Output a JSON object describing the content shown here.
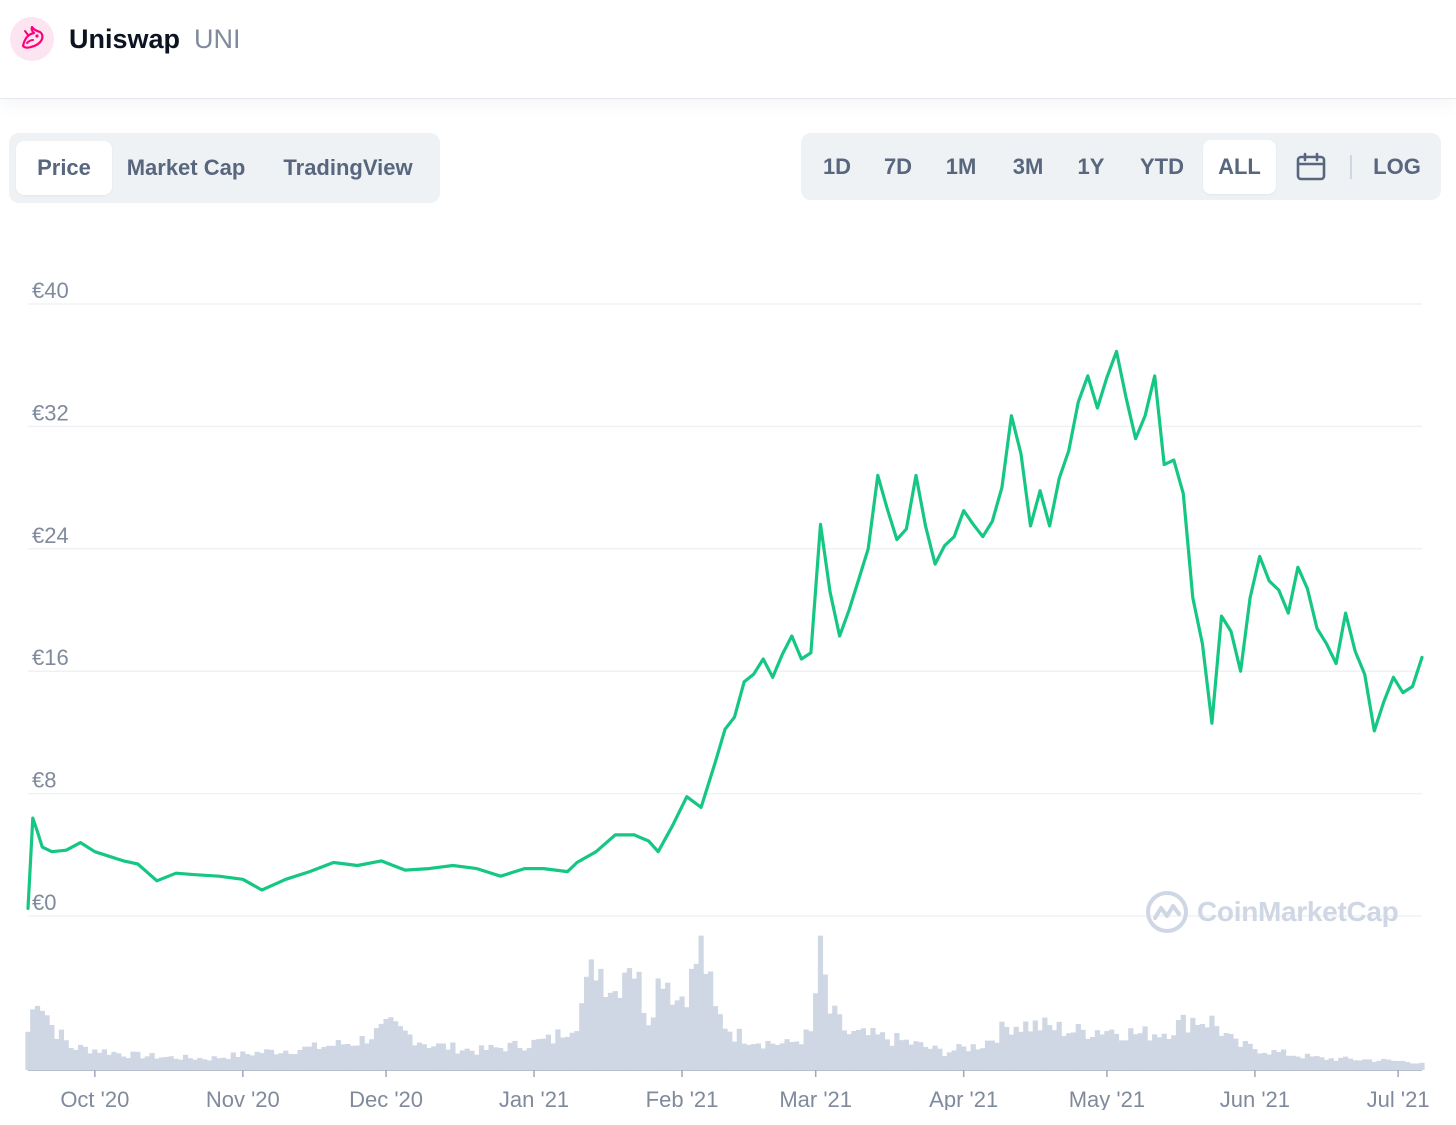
{
  "header": {
    "name": "Uniswap",
    "symbol": "UNI"
  },
  "view_tabs": [
    {
      "label": "Price",
      "active": true
    },
    {
      "label": "Market Cap",
      "active": false
    },
    {
      "label": "TradingView",
      "active": false
    }
  ],
  "range_tabs": [
    {
      "label": "1D",
      "active": false
    },
    {
      "label": "7D",
      "active": false
    },
    {
      "label": "1M",
      "active": false
    },
    {
      "label": "3M",
      "active": false
    },
    {
      "label": "1Y",
      "active": false
    },
    {
      "label": "YTD",
      "active": false
    },
    {
      "label": "ALL",
      "active": true
    }
  ],
  "scale_toggle": "LOG",
  "watermark": "CoinMarketCap",
  "colors": {
    "price_line": "#16c784",
    "volume_fill": "#cfd6e4",
    "logo_accent": "#ff007a"
  },
  "chart_data": {
    "type": "line",
    "title": "",
    "xlabel": "",
    "ylabel": "",
    "ylim": [
      0,
      40
    ],
    "y_ticks": [
      "€0",
      "€8",
      "€16",
      "€24",
      "€32",
      "€40"
    ],
    "x_ticks": [
      {
        "label": "Oct '20",
        "date": "2020-10-01"
      },
      {
        "label": "Nov '20",
        "date": "2020-11-01"
      },
      {
        "label": "Dec '20",
        "date": "2020-12-01"
      },
      {
        "label": "Jan '21",
        "date": "2021-01-01"
      },
      {
        "label": "Feb '21",
        "date": "2021-02-01"
      },
      {
        "label": "Mar '21",
        "date": "2021-03-01"
      },
      {
        "label": "Apr '21",
        "date": "2021-04-01"
      },
      {
        "label": "May '21",
        "date": "2021-05-01"
      },
      {
        "label": "Jun '21",
        "date": "2021-06-01"
      },
      {
        "label": "Jul '21",
        "date": "2021-07-01"
      }
    ],
    "grid": true,
    "series": [
      {
        "values": [
          [
            "2020-09-17",
            0.5
          ],
          [
            "2020-09-18",
            6.4
          ],
          [
            "2020-09-19",
            5.5
          ],
          [
            "2020-09-20",
            4.5
          ],
          [
            "2020-09-22",
            4.2
          ],
          [
            "2020-09-25",
            4.3
          ],
          [
            "2020-09-28",
            4.8
          ],
          [
            "2020-10-01",
            4.2
          ],
          [
            "2020-10-04",
            3.9
          ],
          [
            "2020-10-07",
            3.6
          ],
          [
            "2020-10-10",
            3.4
          ],
          [
            "2020-10-14",
            2.3
          ],
          [
            "2020-10-18",
            2.8
          ],
          [
            "2020-10-22",
            2.7
          ],
          [
            "2020-10-27",
            2.6
          ],
          [
            "2020-11-01",
            2.4
          ],
          [
            "2020-11-05",
            1.7
          ],
          [
            "2020-11-10",
            2.4
          ],
          [
            "2020-11-15",
            2.9
          ],
          [
            "2020-11-20",
            3.5
          ],
          [
            "2020-11-25",
            3.3
          ],
          [
            "2020-11-30",
            3.6
          ],
          [
            "2020-12-05",
            3.0
          ],
          [
            "2020-12-10",
            3.1
          ],
          [
            "2020-12-15",
            3.3
          ],
          [
            "2020-12-20",
            3.1
          ],
          [
            "2020-12-25",
            2.6
          ],
          [
            "2020-12-30",
            3.1
          ],
          [
            "2021-01-03",
            3.1
          ],
          [
            "2021-01-08",
            2.9
          ],
          [
            "2021-01-10",
            3.5
          ],
          [
            "2021-01-14",
            4.2
          ],
          [
            "2021-01-18",
            5.3
          ],
          [
            "2021-01-22",
            5.3
          ],
          [
            "2021-01-25",
            4.9
          ],
          [
            "2021-01-27",
            4.2
          ],
          [
            "2021-01-30",
            5.9
          ],
          [
            "2021-02-02",
            7.8
          ],
          [
            "2021-02-05",
            7.1
          ],
          [
            "2021-02-08",
            10.1
          ],
          [
            "2021-02-10",
            12.2
          ],
          [
            "2021-02-12",
            13.0
          ],
          [
            "2021-02-14",
            15.3
          ],
          [
            "2021-02-16",
            15.8
          ],
          [
            "2021-02-18",
            16.8
          ],
          [
            "2021-02-20",
            15.6
          ],
          [
            "2021-02-22",
            17.1
          ],
          [
            "2021-02-24",
            18.3
          ],
          [
            "2021-02-26",
            16.8
          ],
          [
            "2021-02-28",
            17.2
          ],
          [
            "2021-03-02",
            25.6
          ],
          [
            "2021-03-04",
            21.2
          ],
          [
            "2021-03-06",
            18.3
          ],
          [
            "2021-03-08",
            20.0
          ],
          [
            "2021-03-10",
            22.0
          ],
          [
            "2021-03-12",
            24.0
          ],
          [
            "2021-03-14",
            28.8
          ],
          [
            "2021-03-16",
            26.6
          ],
          [
            "2021-03-18",
            24.6
          ],
          [
            "2021-03-20",
            25.3
          ],
          [
            "2021-03-22",
            28.8
          ],
          [
            "2021-03-24",
            25.5
          ],
          [
            "2021-03-26",
            23.0
          ],
          [
            "2021-03-28",
            24.2
          ],
          [
            "2021-03-30",
            24.8
          ],
          [
            "2021-04-01",
            26.5
          ],
          [
            "2021-04-03",
            25.6
          ],
          [
            "2021-04-05",
            24.8
          ],
          [
            "2021-04-07",
            25.8
          ],
          [
            "2021-04-09",
            28.0
          ],
          [
            "2021-04-11",
            32.7
          ],
          [
            "2021-04-13",
            30.2
          ],
          [
            "2021-04-15",
            25.5
          ],
          [
            "2021-04-17",
            27.8
          ],
          [
            "2021-04-19",
            25.5
          ],
          [
            "2021-04-21",
            28.6
          ],
          [
            "2021-04-23",
            30.4
          ],
          [
            "2021-04-25",
            33.6
          ],
          [
            "2021-04-27",
            35.3
          ],
          [
            "2021-04-29",
            33.2
          ],
          [
            "2021-05-01",
            35.2
          ],
          [
            "2021-05-03",
            36.9
          ],
          [
            "2021-05-05",
            33.9
          ],
          [
            "2021-05-07",
            31.2
          ],
          [
            "2021-05-09",
            32.7
          ],
          [
            "2021-05-11",
            35.3
          ],
          [
            "2021-05-13",
            29.5
          ],
          [
            "2021-05-15",
            29.8
          ],
          [
            "2021-05-17",
            27.6
          ],
          [
            "2021-05-19",
            20.8
          ],
          [
            "2021-05-21",
            17.8
          ],
          [
            "2021-05-23",
            12.6
          ],
          [
            "2021-05-25",
            19.6
          ],
          [
            "2021-05-27",
            18.6
          ],
          [
            "2021-05-29",
            16.0
          ],
          [
            "2021-05-31",
            20.8
          ],
          [
            "2021-06-02",
            23.5
          ],
          [
            "2021-06-04",
            21.9
          ],
          [
            "2021-06-06",
            21.3
          ],
          [
            "2021-06-08",
            19.8
          ],
          [
            "2021-06-10",
            22.8
          ],
          [
            "2021-06-12",
            21.4
          ],
          [
            "2021-06-14",
            18.8
          ],
          [
            "2021-06-16",
            17.8
          ],
          [
            "2021-06-18",
            16.5
          ],
          [
            "2021-06-20",
            19.8
          ],
          [
            "2021-06-22",
            17.3
          ],
          [
            "2021-06-24",
            15.8
          ],
          [
            "2021-06-26",
            12.1
          ],
          [
            "2021-06-28",
            14.0
          ],
          [
            "2021-06-30",
            15.6
          ],
          [
            "2021-07-02",
            14.6
          ],
          [
            "2021-07-04",
            15.0
          ],
          [
            "2021-07-06",
            16.9
          ]
        ]
      }
    ],
    "volume_series": [
      [
        "2020-09-17",
        0.3
      ],
      [
        "2020-09-19",
        0.62
      ],
      [
        "2020-09-22",
        0.35
      ],
      [
        "2020-09-26",
        0.18
      ],
      [
        "2020-10-01",
        0.16
      ],
      [
        "2020-10-08",
        0.12
      ],
      [
        "2020-10-16",
        0.1
      ],
      [
        "2020-10-25",
        0.09
      ],
      [
        "2020-11-05",
        0.14
      ],
      [
        "2020-11-15",
        0.17
      ],
      [
        "2020-11-25",
        0.22
      ],
      [
        "2020-12-02",
        0.34
      ],
      [
        "2020-12-10",
        0.2
      ],
      [
        "2020-12-20",
        0.15
      ],
      [
        "2020-12-30",
        0.2
      ],
      [
        "2021-01-05",
        0.24
      ],
      [
        "2021-01-10",
        0.4
      ],
      [
        "2021-01-14",
        0.85
      ],
      [
        "2021-01-18",
        0.62
      ],
      [
        "2021-01-21",
        0.92
      ],
      [
        "2021-01-25",
        0.42
      ],
      [
        "2021-01-28",
        0.8
      ],
      [
        "2021-01-31",
        0.55
      ],
      [
        "2021-02-03",
        0.7
      ],
      [
        "2021-02-05",
        1.0
      ],
      [
        "2021-02-08",
        0.45
      ],
      [
        "2021-02-12",
        0.28
      ],
      [
        "2021-02-18",
        0.22
      ],
      [
        "2021-02-23",
        0.2
      ],
      [
        "2021-02-28",
        0.28
      ],
      [
        "2021-03-02",
        0.92
      ],
      [
        "2021-03-04",
        0.45
      ],
      [
        "2021-03-08",
        0.28
      ],
      [
        "2021-03-14",
        0.26
      ],
      [
        "2021-03-20",
        0.22
      ],
      [
        "2021-03-28",
        0.14
      ],
      [
        "2021-04-05",
        0.2
      ],
      [
        "2021-04-11",
        0.36
      ],
      [
        "2021-04-18",
        0.34
      ],
      [
        "2021-04-25",
        0.3
      ],
      [
        "2021-05-01",
        0.32
      ],
      [
        "2021-05-08",
        0.28
      ],
      [
        "2021-05-13",
        0.3
      ],
      [
        "2021-05-19",
        0.4
      ],
      [
        "2021-05-23",
        0.38
      ],
      [
        "2021-05-28",
        0.2
      ],
      [
        "2021-06-05",
        0.14
      ],
      [
        "2021-06-15",
        0.09
      ],
      [
        "2021-06-25",
        0.08
      ],
      [
        "2021-07-06",
        0.06
      ]
    ]
  }
}
